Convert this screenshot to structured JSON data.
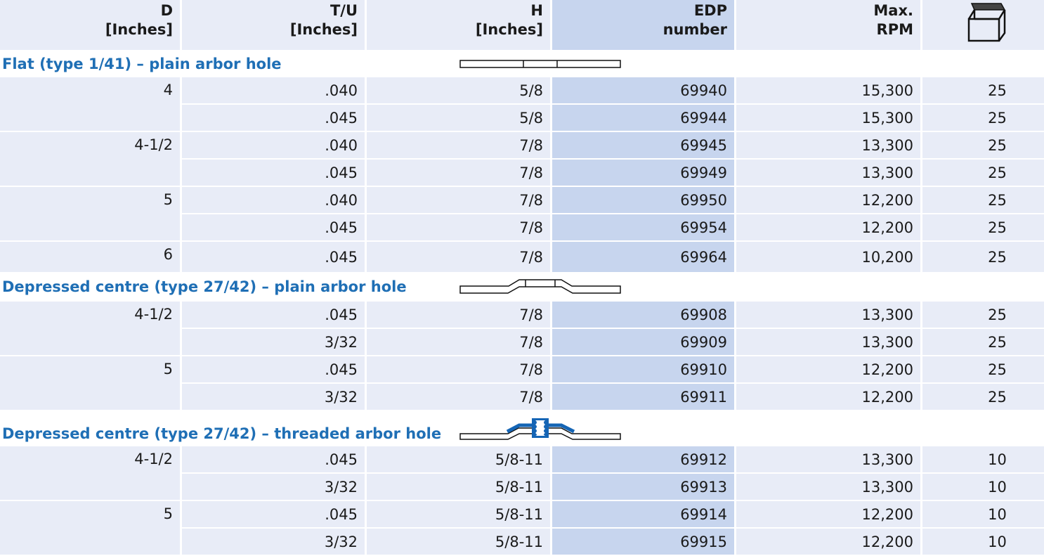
{
  "headers": [
    {
      "line1": "D",
      "line2": "[Inches]"
    },
    {
      "line1": "T/U",
      "line2": "[Inches]"
    },
    {
      "line1": "H",
      "line2": "[Inches]"
    },
    {
      "line1": "EDP",
      "line2": "number"
    },
    {
      "line1": "Max.",
      "line2": "RPM"
    }
  ],
  "pack_icon": "open-box-icon",
  "colors": {
    "row_bg": "#e8ecf7",
    "edp_bg": "#c7d5ee",
    "title": "#1f6fb5",
    "threaded_highlight": "#1565b5"
  },
  "sections": [
    {
      "title": "Flat (type 1/41) – plain arbor hole",
      "diagram": "flat-wheel-icon",
      "groups": [
        {
          "d": "4",
          "rows": [
            [
              ".040",
              "5/8",
              "69940",
              "15,300",
              "25"
            ],
            [
              ".045",
              "5/8",
              "69944",
              "15,300",
              "25"
            ]
          ]
        },
        {
          "d": "4-1/2",
          "rows": [
            [
              ".040",
              "7/8",
              "69945",
              "13,300",
              "25"
            ],
            [
              ".045",
              "7/8",
              "69949",
              "13,300",
              "25"
            ]
          ]
        },
        {
          "d": "5",
          "rows": [
            [
              ".040",
              "7/8",
              "69950",
              "12,200",
              "25"
            ],
            [
              ".045",
              "7/8",
              "69954",
              "12,200",
              "25"
            ]
          ]
        },
        {
          "d": "6",
          "rows": [
            [
              ".045",
              "7/8",
              "69964",
              "10,200",
              "25"
            ]
          ]
        }
      ]
    },
    {
      "title": "Depressed centre (type 27/42) – plain arbor hole",
      "diagram": "depressed-wheel-icon",
      "groups": [
        {
          "d": "4-1/2",
          "rows": [
            [
              ".045",
              "7/8",
              "69908",
              "13,300",
              "25"
            ],
            [
              "3/32",
              "7/8",
              "69909",
              "13,300",
              "25"
            ]
          ]
        },
        {
          "d": "5",
          "rows": [
            [
              ".045",
              "7/8",
              "69910",
              "12,200",
              "25"
            ],
            [
              "3/32",
              "7/8",
              "69911",
              "12,200",
              "25"
            ]
          ]
        }
      ]
    },
    {
      "title": "Depressed centre (type 27/42) – threaded arbor hole",
      "diagram": "threaded-wheel-icon",
      "groups": [
        {
          "d": "4-1/2",
          "rows": [
            [
              ".045",
              "5/8-11",
              "69912",
              "13,300",
              "10"
            ],
            [
              "3/32",
              "5/8-11",
              "69913",
              "13,300",
              "10"
            ]
          ]
        },
        {
          "d": "5",
          "rows": [
            [
              ".045",
              "5/8-11",
              "69914",
              "12,200",
              "10"
            ],
            [
              "3/32",
              "5/8-11",
              "69915",
              "12,200",
              "10"
            ]
          ]
        }
      ]
    }
  ]
}
